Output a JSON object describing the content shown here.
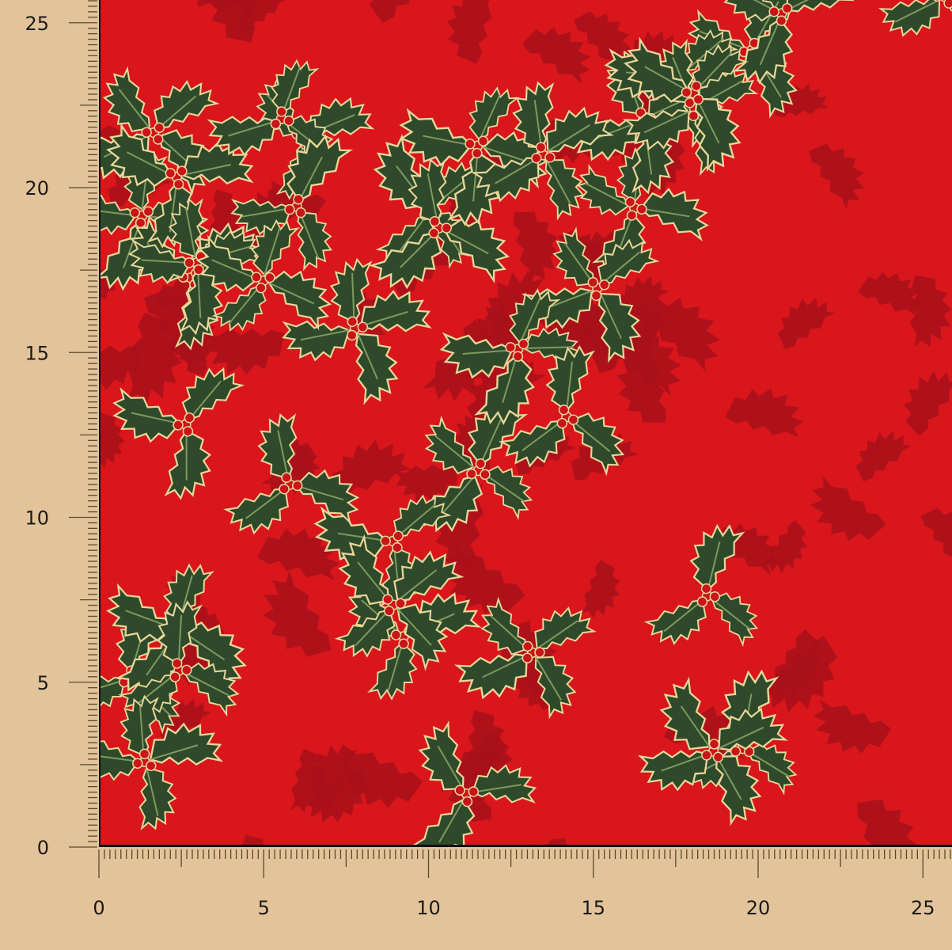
{
  "image": {
    "subject": "red fabric swatch with holly leaves and berries printed with gold outlines",
    "colors": {
      "background": "#e3c49a",
      "fabric": "#d8161c",
      "shadow_leaf": "#a8101a",
      "leaf": "#2f4a2a",
      "leaf_light": "#7d9a62",
      "gold": "#e8d79a",
      "berry": "#c8141a",
      "ruler": "#5a4a2a"
    }
  },
  "ruler": {
    "bottom_labels": [
      "0",
      "5",
      "10",
      "15",
      "20",
      "25"
    ],
    "left_labels": [
      "0",
      "5",
      "10",
      "15",
      "20",
      "25"
    ]
  }
}
